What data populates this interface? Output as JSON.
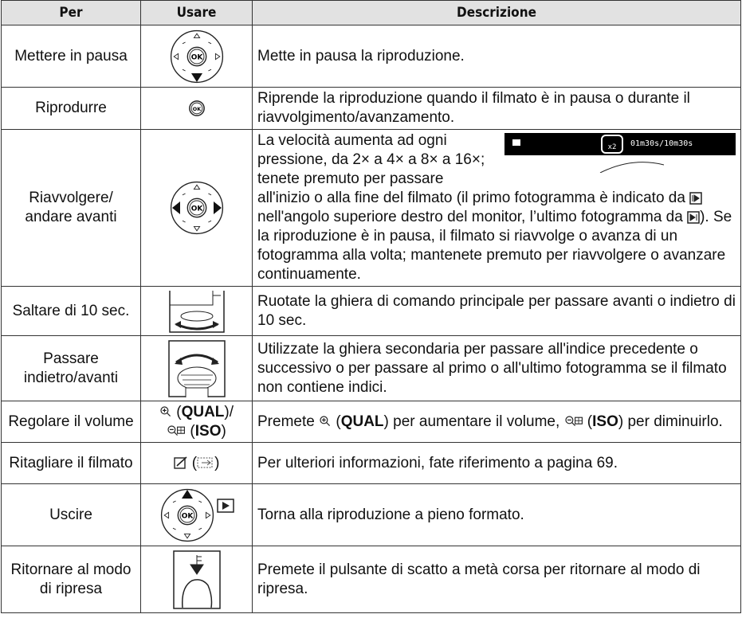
{
  "header": {
    "columns": [
      "Per",
      "Usare",
      "Descrizione"
    ]
  },
  "rows": [
    {
      "per": "Mettere in pausa",
      "description": "Mette in pausa la riproduzione."
    },
    {
      "per": "Riprodurre",
      "description": "Riprende la riproduzione quando il filmato è in pausa o durante il riavvolgimento/avanzamento."
    },
    {
      "per": "Riavvolgere/ andare avanti",
      "description": [
        "La velocità aumenta ad ogni pressione, da 2× a 4× a 8× a 16×; tenete premuto per passare all'inizio o alla fine del filmato (il primo fotogramma è indicato da ",
        " nell'angolo superiore destro del monitor, l’ultimo fotogramma da ",
        "). Se la riproduzione è in pausa, il filmato si riavvolge o avanza di un fotogramma alla volta; mantenete premuto per riavvolgere o avanzare continuamente."
      ],
      "inset": {
        "speed": "x2",
        "time": "01m30s/10m30s"
      }
    },
    {
      "per": "Saltare di 10 sec.",
      "description": "Ruotate la ghiera di comando principale per passare avanti o indietro di 10 sec."
    },
    {
      "per": "Passare indietro/avanti",
      "description": "Utilizzate la ghiera secondaria per passare all'indice precedente o successivo o per passare al primo o all'ultimo fotogramma se il filmato non contiene indici."
    },
    {
      "per": "Regolare il volume",
      "usare": [
        " (",
        "QUAL",
        ")/",
        " (",
        "ISO",
        ")"
      ],
      "description": [
        "Premete ",
        " (",
        "QUAL",
        ") per aumentare il volume, ",
        " (",
        "ISO",
        ") per diminuirlo."
      ]
    },
    {
      "per": "Ritagliare il filmato",
      "usare": [
        " (",
        ")"
      ],
      "description": "Per ulteriori informazioni, fate riferimento a pagina 69."
    },
    {
      "per": "Uscire",
      "description": "Torna alla riproduzione a pieno formato."
    },
    {
      "per": "Ritornare al modo di ripresa",
      "description": "Premete il pulsante di scatto a metà corsa per ritornare al modo di ripresa."
    }
  ]
}
